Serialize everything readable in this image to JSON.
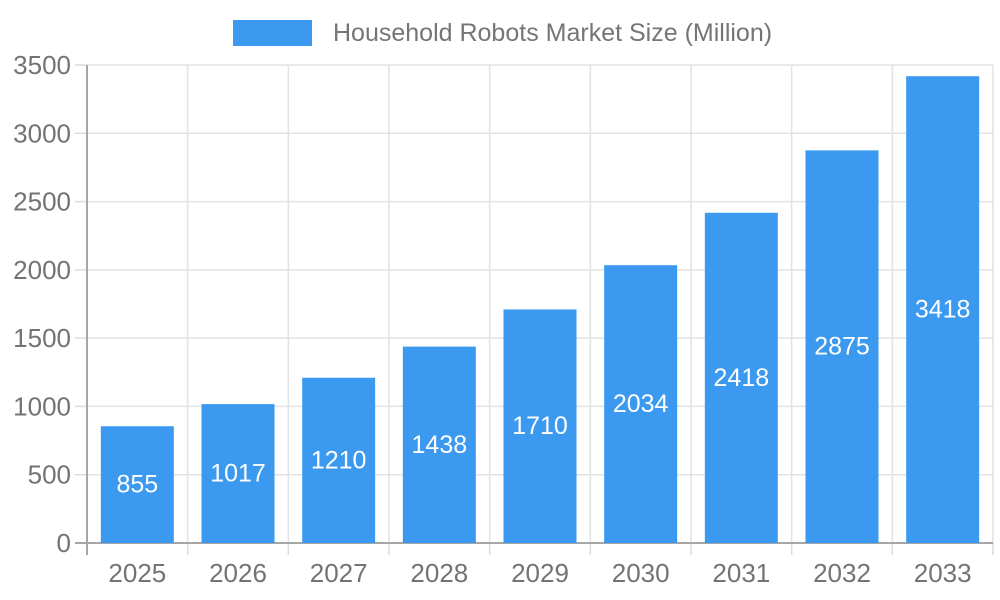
{
  "page": {
    "background": "#ffffff"
  },
  "legend": {
    "label": "Household Robots Market Size (Million)"
  },
  "chart_data": {
    "type": "bar",
    "title": "Household Robots Market Size (Million)",
    "categories": [
      "2025",
      "2026",
      "2027",
      "2028",
      "2029",
      "2030",
      "2031",
      "2032",
      "2033"
    ],
    "series": [
      {
        "name": "Household Robots Market Size (Million)",
        "values": [
          855,
          1017,
          1210,
          1438,
          1710,
          2034,
          2418,
          2875,
          3418
        ]
      }
    ],
    "bar_value_labels": [
      "855",
      "1017",
      "1210",
      "1438",
      "1710",
      "2034",
      "2418",
      "2875",
      "3418"
    ],
    "xlabel": "",
    "ylabel": "",
    "ylim": [
      0,
      3500
    ],
    "yticks": [
      0,
      500,
      1000,
      1500,
      2000,
      2500,
      3000,
      3500
    ],
    "grid": true,
    "legend_position": "top-center",
    "colors": {
      "bar": "#3b99f0",
      "grid": "#e2e2e2",
      "axis": "#a6a6a6",
      "tick": "#dcdcdc",
      "axis_text": "#737373",
      "legend_text": "#757575",
      "value_label": "#ffffff"
    }
  }
}
